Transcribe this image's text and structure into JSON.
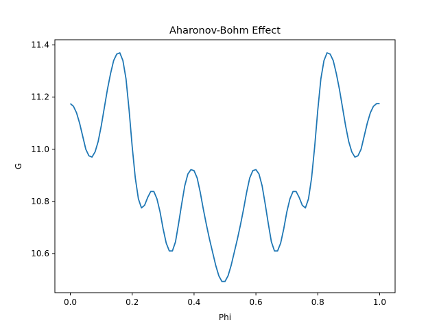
{
  "chart_data": {
    "type": "line",
    "title": "Aharonov-Bohm Effect",
    "xlabel": "Phi",
    "ylabel": "G",
    "xlim": [
      -0.05,
      1.05
    ],
    "ylim": [
      10.45,
      11.42
    ],
    "xticks": [
      0.0,
      0.2,
      0.4,
      0.6,
      0.8,
      1.0
    ],
    "xtick_labels": [
      "0.0",
      "0.2",
      "0.4",
      "0.6",
      "0.8",
      "1.0"
    ],
    "yticks": [
      10.6,
      10.8,
      11.0,
      11.2,
      11.4
    ],
    "ytick_labels": [
      "10.6",
      "10.8",
      "11.0",
      "11.2",
      "11.4"
    ],
    "grid": false,
    "series": [
      {
        "color": "#1f77b4",
        "x": [
          0.0,
          0.01,
          0.02,
          0.03,
          0.04,
          0.05,
          0.06,
          0.07,
          0.08,
          0.09,
          0.1,
          0.11,
          0.12,
          0.13,
          0.14,
          0.15,
          0.16,
          0.17,
          0.18,
          0.19,
          0.2,
          0.21,
          0.22,
          0.23,
          0.24,
          0.25,
          0.26,
          0.27,
          0.28,
          0.29,
          0.3,
          0.31,
          0.32,
          0.33,
          0.34,
          0.35,
          0.36,
          0.37,
          0.38,
          0.39,
          0.4,
          0.41,
          0.42,
          0.43,
          0.44,
          0.45,
          0.46,
          0.47,
          0.48,
          0.49,
          0.5,
          0.51,
          0.52,
          0.53,
          0.54,
          0.55,
          0.56,
          0.57,
          0.58,
          0.59,
          0.6,
          0.61,
          0.62,
          0.63,
          0.64,
          0.65,
          0.66,
          0.67,
          0.68,
          0.69,
          0.7,
          0.71,
          0.72,
          0.73,
          0.74,
          0.75,
          0.76,
          0.77,
          0.78,
          0.79,
          0.8,
          0.81,
          0.82,
          0.83,
          0.84,
          0.85,
          0.86,
          0.87,
          0.88,
          0.89,
          0.9,
          0.91,
          0.92,
          0.93,
          0.94,
          0.95,
          0.96,
          0.97,
          0.98,
          0.99,
          1.0
        ],
        "y": [
          11.175,
          11.165,
          11.14,
          11.1,
          11.05,
          11.0,
          10.975,
          10.97,
          10.99,
          11.03,
          11.09,
          11.16,
          11.23,
          11.29,
          11.34,
          11.365,
          11.37,
          11.34,
          11.27,
          11.15,
          11.01,
          10.89,
          10.81,
          10.775,
          10.785,
          10.815,
          10.838,
          10.838,
          10.81,
          10.76,
          10.695,
          10.64,
          10.61,
          10.61,
          10.645,
          10.715,
          10.79,
          10.86,
          10.905,
          10.922,
          10.918,
          10.89,
          10.835,
          10.77,
          10.71,
          10.655,
          10.605,
          10.555,
          10.515,
          10.493,
          10.493,
          10.515,
          10.555,
          10.605,
          10.655,
          10.71,
          10.77,
          10.835,
          10.89,
          10.918,
          10.922,
          10.905,
          10.86,
          10.79,
          10.715,
          10.645,
          10.61,
          10.61,
          10.64,
          10.695,
          10.76,
          10.81,
          10.838,
          10.838,
          10.815,
          10.785,
          10.775,
          10.81,
          10.89,
          11.01,
          11.15,
          11.27,
          11.34,
          11.37,
          11.365,
          11.34,
          11.29,
          11.23,
          11.16,
          11.09,
          11.03,
          10.99,
          10.97,
          10.975,
          11.0,
          11.05,
          11.1,
          11.14,
          11.165,
          11.175,
          11.175
        ]
      }
    ]
  }
}
